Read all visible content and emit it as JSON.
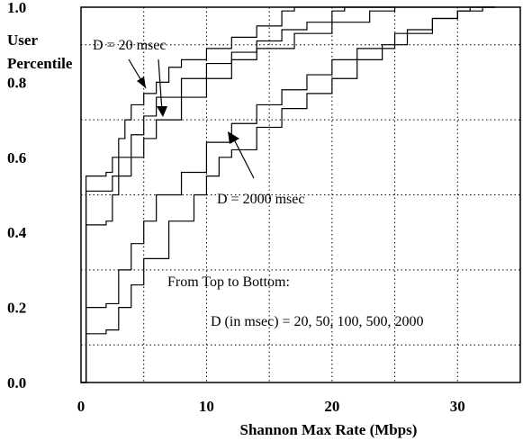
{
  "chart_data": {
    "type": "line",
    "title": "",
    "xlabel": "Shannon Max Rate (Mbps)",
    "ylabel": "User Percentile",
    "xlim": [
      0,
      35
    ],
    "ylim": [
      0,
      1.0
    ],
    "x_ticks": [
      0,
      10,
      20,
      30
    ],
    "y_ticks": [
      0.0,
      0.2,
      0.4,
      0.6,
      0.8,
      1.0
    ],
    "x_tick_labels": [
      "0",
      "10",
      "20",
      "30"
    ],
    "y_tick_labels": [
      "0.0",
      "0.2",
      "0.4",
      "0.6",
      "0.8",
      "1.0"
    ],
    "grid": true,
    "legend": "none",
    "annotations": [
      {
        "text": "D = 20 msec"
      },
      {
        "text": "D = 2000 msec"
      },
      {
        "text": "From Top to Bottom:"
      },
      {
        "text": "D (in msec) = 20, 50, 100, 500, 2000"
      }
    ],
    "series": [
      {
        "values": [
          [
            0,
            0
          ],
          [
            0.4,
            0.55
          ],
          [
            2,
            0.56
          ],
          [
            2.5,
            0.6
          ],
          [
            3,
            0.65
          ],
          [
            3.5,
            0.7
          ],
          [
            4,
            0.74
          ],
          [
            5,
            0.77
          ],
          [
            6,
            0.8
          ],
          [
            7,
            0.84
          ],
          [
            8,
            0.86
          ],
          [
            10,
            0.89
          ],
          [
            12,
            0.92
          ],
          [
            14,
            0.95
          ],
          [
            16,
            0.99
          ],
          [
            17,
            1.0
          ],
          [
            22,
            1.0
          ],
          [
            25,
            1.0
          ]
        ]
      },
      {
        "values": [
          [
            0,
            0
          ],
          [
            0.4,
            0.51
          ],
          [
            2,
            0.51
          ],
          [
            2.5,
            0.55
          ],
          [
            3,
            0.6
          ],
          [
            4,
            0.66
          ],
          [
            5,
            0.71
          ],
          [
            6,
            0.76
          ],
          [
            8,
            0.81
          ],
          [
            10,
            0.85
          ],
          [
            12,
            0.88
          ],
          [
            14,
            0.91
          ],
          [
            16,
            0.94
          ],
          [
            18,
            0.96
          ],
          [
            20,
            0.99
          ],
          [
            21,
            1.0
          ],
          [
            25,
            1.0
          ]
        ]
      },
      {
        "values": [
          [
            0,
            0
          ],
          [
            0.4,
            0.42
          ],
          [
            2,
            0.43
          ],
          [
            2.5,
            0.5
          ],
          [
            3,
            0.55
          ],
          [
            4,
            0.6
          ],
          [
            5,
            0.65
          ],
          [
            6,
            0.7
          ],
          [
            8,
            0.76
          ],
          [
            10,
            0.81
          ],
          [
            12,
            0.86
          ],
          [
            14,
            0.89
          ],
          [
            17,
            0.93
          ],
          [
            20,
            0.96
          ],
          [
            23,
            0.99
          ],
          [
            25,
            1.0
          ],
          [
            33,
            1.0
          ]
        ]
      },
      {
        "values": [
          [
            0,
            0
          ],
          [
            0.4,
            0.2
          ],
          [
            2,
            0.21
          ],
          [
            3,
            0.3
          ],
          [
            4,
            0.37
          ],
          [
            5,
            0.43
          ],
          [
            6,
            0.5
          ],
          [
            8,
            0.56
          ],
          [
            10,
            0.64
          ],
          [
            12,
            0.69
          ],
          [
            14,
            0.74
          ],
          [
            16,
            0.78
          ],
          [
            18,
            0.82
          ],
          [
            20,
            0.86
          ],
          [
            22,
            0.89
          ],
          [
            25,
            0.93
          ],
          [
            28,
            0.97
          ],
          [
            30,
            0.99
          ],
          [
            31,
            1.0
          ],
          [
            33,
            1.0
          ]
        ]
      },
      {
        "values": [
          [
            0,
            0
          ],
          [
            0.4,
            0.13
          ],
          [
            2,
            0.14
          ],
          [
            3,
            0.2
          ],
          [
            4,
            0.26
          ],
          [
            5,
            0.33
          ],
          [
            7,
            0.43
          ],
          [
            9,
            0.5
          ],
          [
            10,
            0.55
          ],
          [
            11,
            0.6
          ],
          [
            12,
            0.62
          ],
          [
            14,
            0.68
          ],
          [
            16,
            0.73
          ],
          [
            18,
            0.77
          ],
          [
            20,
            0.81
          ],
          [
            22,
            0.86
          ],
          [
            24,
            0.9
          ],
          [
            26,
            0.94
          ],
          [
            28,
            0.97
          ],
          [
            30,
            0.99
          ],
          [
            32,
            1.0
          ],
          [
            33,
            1.0
          ]
        ]
      }
    ]
  }
}
